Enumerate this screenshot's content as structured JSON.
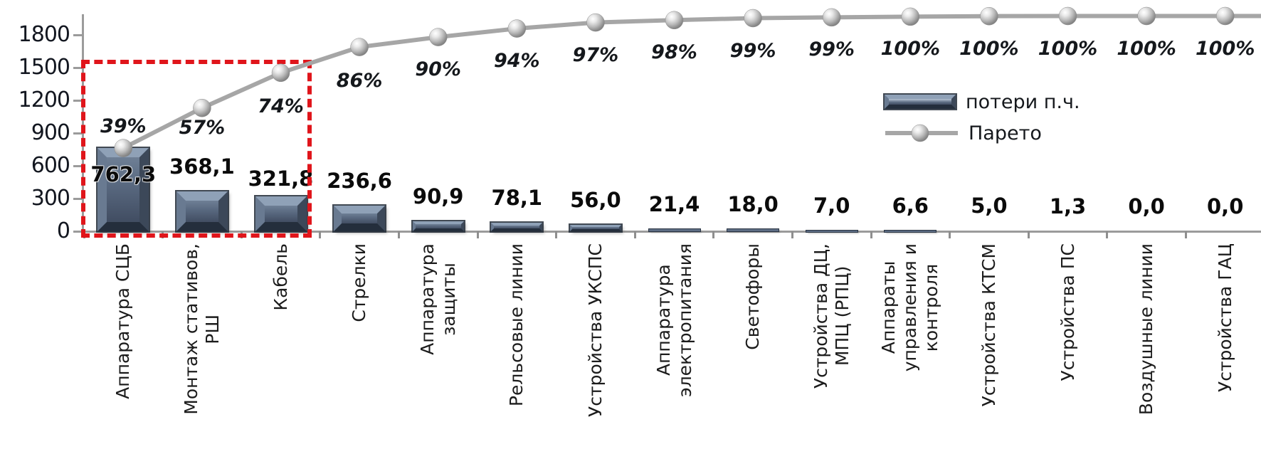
{
  "chart_data": {
    "type": "pareto (bar + cumulative line)",
    "title": "",
    "categories": [
      "Аппаратура СЦБ",
      "Монтаж стативов,\nРШ",
      "Кабель",
      "Стрелки",
      "Аппаратура\nзащиты",
      "Рельсовые линии",
      "Устройства УКСПС",
      "Аппаратура\nэлектропитания",
      "Светофоры",
      "Устройства ДЦ,\nМПЦ (РПЦ)",
      "Аппараты\nуправления и\nконтроля",
      "Устройства КТСМ",
      "Устройства ПС",
      "Воздушные линии",
      "Устройства ГАЦ"
    ],
    "series": [
      {
        "name": "потери п.ч.",
        "type": "bar",
        "values": [
          762.3,
          368.1,
          321.8,
          236.6,
          90.9,
          78.1,
          56.0,
          21.4,
          18.0,
          7.0,
          6.6,
          5.0,
          1.3,
          0.0,
          0.0
        ],
        "value_labels": [
          "762,3",
          "368,1",
          "321,8",
          "236,6",
          "90,9",
          "78,1",
          "56,0",
          "21,4",
          "18,0",
          "7,0",
          "6,6",
          "5,0",
          "1,3",
          "0,0",
          "0,0"
        ]
      },
      {
        "name": "Парето",
        "type": "line",
        "cumulative_percent": [
          39,
          57,
          74,
          86,
          90,
          94,
          97,
          98,
          99,
          99,
          100,
          100,
          100,
          100,
          100
        ],
        "percent_labels": [
          "39%",
          "57%",
          "74%",
          "86%",
          "90%",
          "94%",
          "97%",
          "98%",
          "99%",
          "99%",
          "100%",
          "100%",
          "100%",
          "100%",
          "100%"
        ]
      }
    ],
    "y_axis": {
      "ticks": [
        "1800",
        "1500",
        "1200",
        "900",
        "600",
        "300",
        "0"
      ],
      "min": 0,
      "max": 1800,
      "gridlines": false
    },
    "legend": {
      "position": "right-inside",
      "items": [
        {
          "label": "потери п.ч.",
          "swatch": "bar"
        },
        {
          "label": "Парето",
          "swatch": "line-marker"
        }
      ]
    },
    "annotation_box": {
      "style": "red dashed rectangle",
      "color": "#e0151b",
      "categories_covered": [
        "Аппаратура СЦБ",
        "Монтаж стативов, РШ",
        "Кабель"
      ]
    },
    "colors": {
      "bar_face": "#5a6a81",
      "bar_bevel_light": "#8fa1b7",
      "bar_bevel_dark": "#242e3c",
      "line": "#a6a6a6",
      "marker": "#b5b5b5",
      "axis": "#9b9b9b",
      "text": "#15181c",
      "highlight": "#e0151b"
    }
  }
}
